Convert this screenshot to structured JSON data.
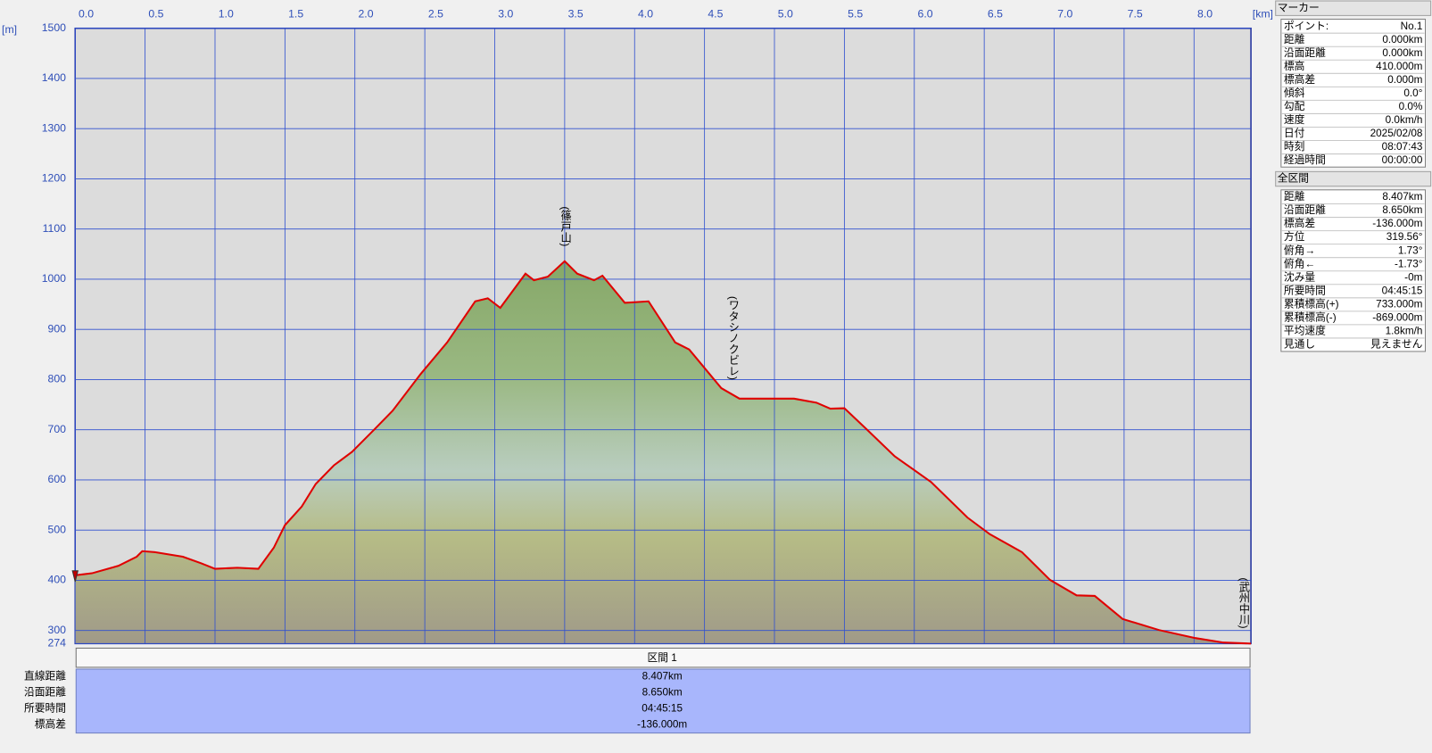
{
  "chart_data": {
    "type": "area",
    "x_unit": "[km]",
    "y_unit": "[m]",
    "x": [
      0,
      0.12,
      0.31,
      0.44,
      0.48,
      0.57,
      0.77,
      0.9,
      1.0,
      1.16,
      1.31,
      1.42,
      1.5,
      1.62,
      1.72,
      1.85,
      1.98,
      2.14,
      2.27,
      2.47,
      2.66,
      2.86,
      2.95,
      3.04,
      3.22,
      3.28,
      3.38,
      3.5,
      3.59,
      3.71,
      3.77,
      3.93,
      4.1,
      4.29,
      4.39,
      4.62,
      4.75,
      5.01,
      5.14,
      5.3,
      5.4,
      5.5,
      5.66,
      5.86,
      6.12,
      6.38,
      6.54,
      6.77,
      6.97,
      7.16,
      7.29,
      7.49,
      7.75,
      8.01,
      8.21,
      8.407
    ],
    "values": [
      410,
      414,
      429,
      447,
      458,
      456,
      447,
      434,
      423,
      425,
      423,
      465,
      510,
      547,
      592,
      629,
      656,
      701,
      738,
      811,
      874,
      956,
      962,
      943,
      1011,
      998,
      1005,
      1036,
      1011,
      998,
      1007,
      953,
      956,
      874,
      860,
      783,
      762,
      762,
      762,
      754,
      742,
      743,
      701,
      647,
      596,
      525,
      492,
      456,
      401,
      370,
      369,
      323,
      301,
      285,
      276,
      274
    ],
    "color": "#e00000",
    "xlim": [
      0,
      8.407
    ],
    "ylim": [
      274,
      1500
    ],
    "xticks": [
      {
        "value": 0,
        "label": "0.0"
      },
      0.5,
      {
        "value": 1,
        "label": "1.0"
      },
      1.5,
      {
        "value": 2,
        "label": "2.0"
      },
      2.5,
      {
        "value": 3,
        "label": "3.0"
      },
      3.5,
      {
        "value": 4,
        "label": "4.0"
      },
      4.5,
      {
        "value": 5,
        "label": "5.0"
      },
      5.5,
      {
        "value": 6,
        "label": "6.0"
      },
      6.5,
      {
        "value": 7,
        "label": "7.0"
      },
      7.5,
      {
        "value": 8,
        "label": "8.0"
      }
    ],
    "yticks": [
      274,
      300,
      400,
      500,
      600,
      700,
      800,
      900,
      1000,
      1100,
      1200,
      1300,
      1400,
      1500
    ],
    "grid": true,
    "annotations": [
      {
        "text": "(篠戸山)",
        "x": 3.5
      },
      {
        "text": "(ワタシノクビレ)",
        "x": 4.7
      },
      {
        "text": "(武州中川)",
        "x": 8.35
      }
    ]
  },
  "marker_panel": {
    "title": "マーカー",
    "rows": [
      [
        "ポイント:",
        "No.1"
      ],
      [
        "距離",
        "0.000km"
      ],
      [
        "沿面距離",
        "0.000km"
      ],
      [
        "標高",
        "410.000m"
      ],
      [
        "標高差",
        "0.000m"
      ],
      [
        "傾斜",
        "0.0°"
      ],
      [
        "勾配",
        "0.0%"
      ],
      [
        "速度",
        "0.0km/h"
      ],
      [
        "日付",
        "2025/02/08"
      ],
      [
        "時刻",
        "08:07:43"
      ],
      [
        "経過時間",
        "00:00:00"
      ]
    ]
  },
  "section_panel": {
    "title": "全区間",
    "rows": [
      [
        "距離",
        "8.407km"
      ],
      [
        "沿面距離",
        "8.650km"
      ],
      [
        "標高差",
        "-136.000m"
      ],
      [
        "方位",
        "319.56°"
      ],
      [
        "俯角→",
        "1.73°"
      ],
      [
        "俯角←",
        "-1.73°"
      ],
      [
        "沈み量",
        "-0m"
      ],
      [
        "所要時間",
        "04:45:15"
      ],
      [
        "累積標高(+)",
        "733.000m"
      ],
      [
        "累積標高(-)",
        "-869.000m"
      ],
      [
        "平均速度",
        "1.8km/h"
      ],
      [
        "見通し",
        "見えません"
      ]
    ]
  },
  "section_table": {
    "header": "区間 1",
    "rows": [
      [
        "直線距離",
        "8.407km"
      ],
      [
        "沿面距離",
        "8.650km"
      ],
      [
        "所要時間",
        "04:45:15"
      ],
      [
        "標高差",
        "-136.000m"
      ]
    ]
  }
}
